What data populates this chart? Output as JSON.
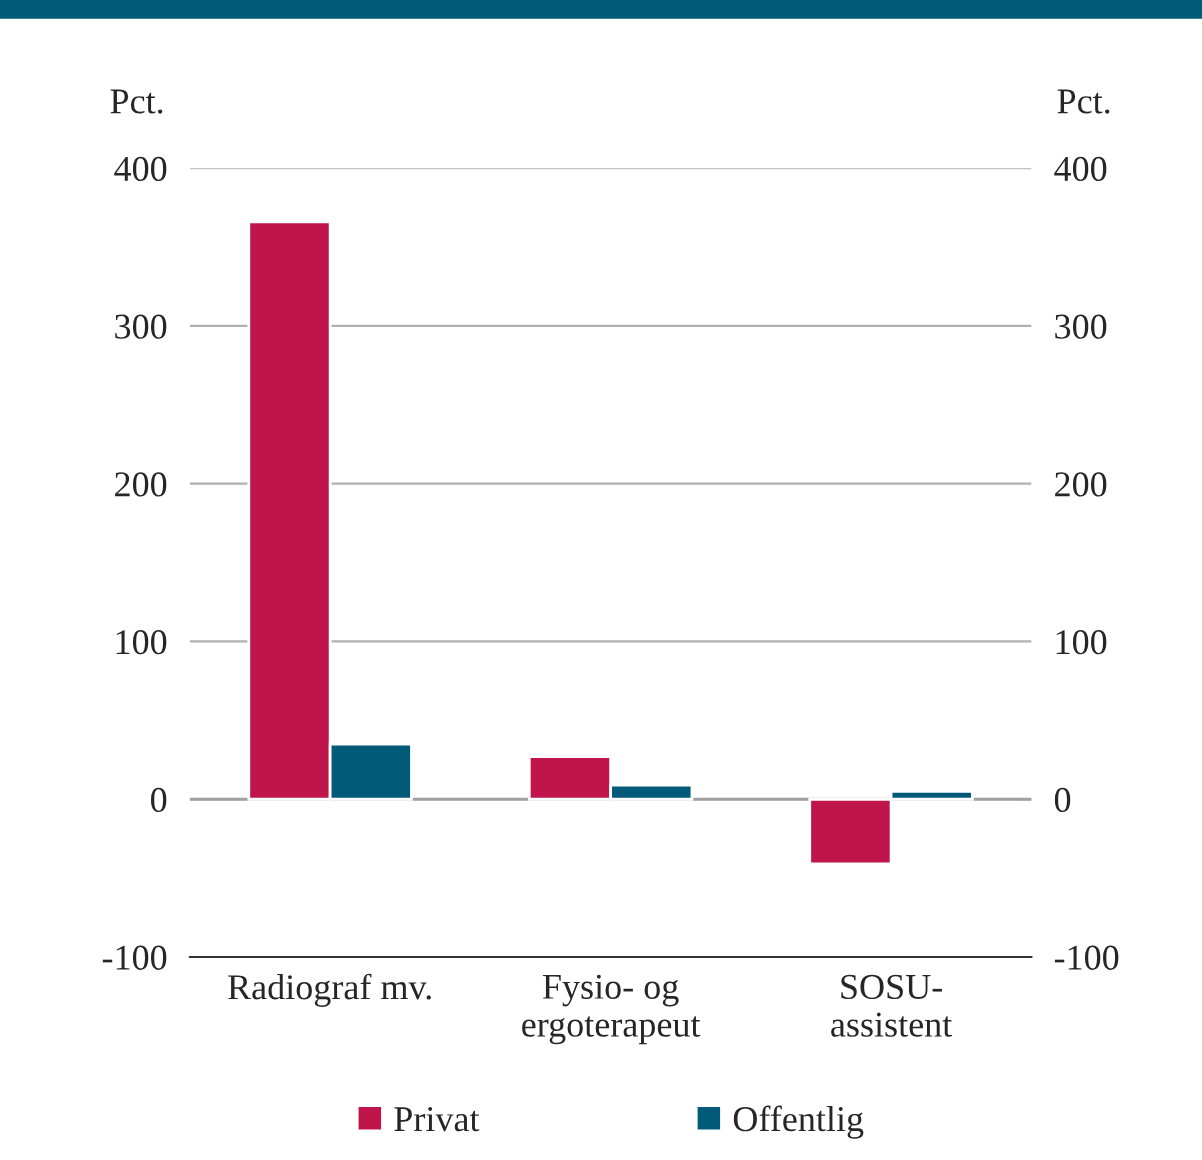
{
  "chart_data": {
    "type": "bar",
    "categories": [
      "Radiograf mv.",
      "Fysio- og\nergoterapeut",
      "SOSU-\nassistent"
    ],
    "series": [
      {
        "name": "Privat",
        "color": "#c0154a",
        "values": [
          366,
          27,
          -41
        ]
      },
      {
        "name": "Offentlig",
        "color": "#005a78",
        "values": [
          35,
          9,
          5
        ]
      }
    ],
    "ylabel": "Pct.",
    "y2label": "Pct.",
    "ylim": [
      -100,
      400
    ],
    "yticks": [
      -100,
      0,
      100,
      200,
      300,
      400
    ],
    "y2lim": [
      -100,
      400
    ],
    "y2ticks": [
      -100,
      0,
      100,
      200,
      300,
      400
    ],
    "ref_lines": [
      {
        "axis": "y",
        "value": 0,
        "color": "#a0a0a0"
      }
    ],
    "grid": "y",
    "legend": "bottom"
  }
}
